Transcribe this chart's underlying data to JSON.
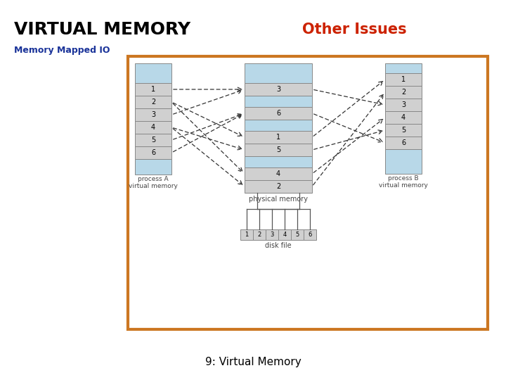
{
  "title": "VIRTUAL MEMORY",
  "subtitle": "Other Issues",
  "subtitle_color": "#cc2200",
  "title_color": "#000000",
  "memory_mapped_io": "Memory Mapped IO",
  "memory_mapped_io_color": "#1a3399",
  "footer": "9: Virtual Memory",
  "footer_color": "#000000",
  "border_color": "#cc7722",
  "light_blue": "#b8d8e8",
  "light_gray": "#d0d0d0",
  "bg_white": "#ffffff"
}
